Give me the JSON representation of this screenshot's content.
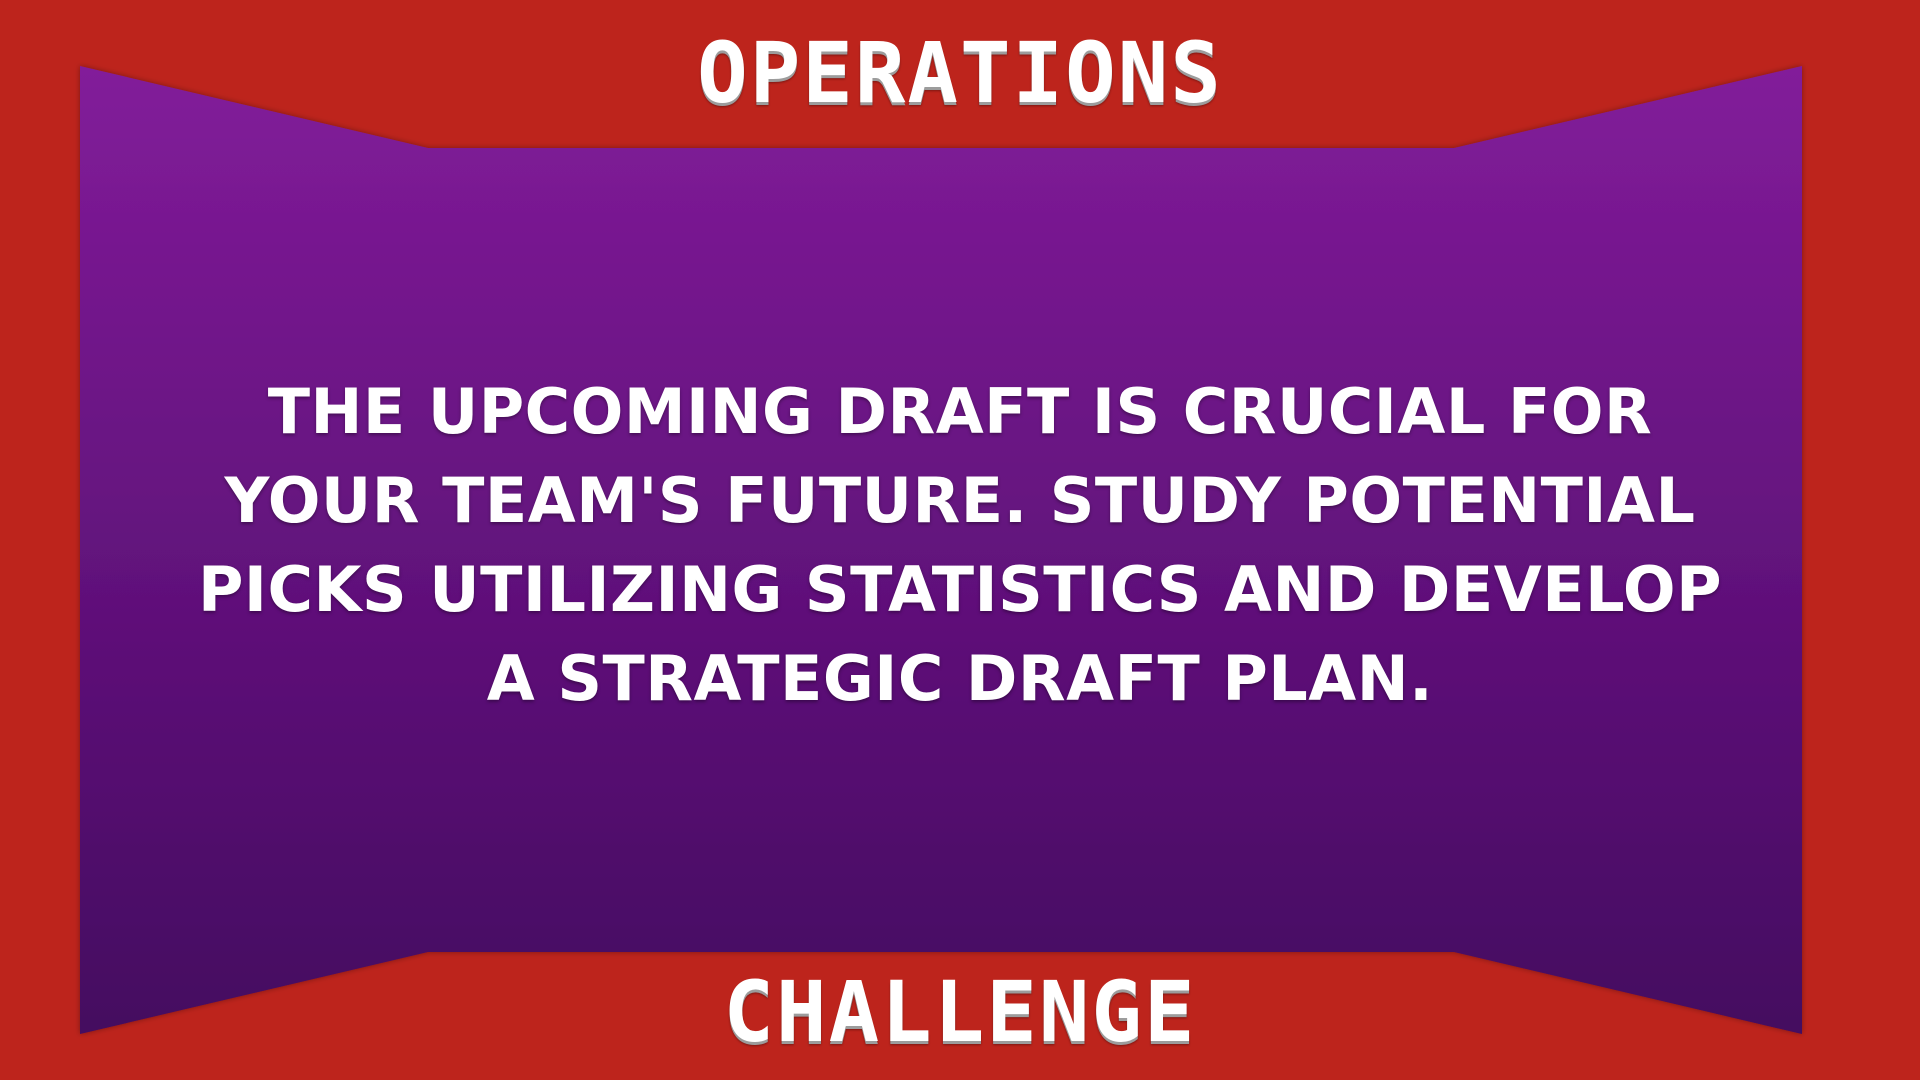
{
  "header": {
    "title": "OPERATIONS"
  },
  "main": {
    "prompt": "THE UPCOMING DRAFT IS CRUCIAL FOR YOUR TEAM'S FUTURE. STUDY POTENTIAL PICKS UTILIZING STATISTICS AND DEVELOP A STRATEGIC DRAFT PLAN."
  },
  "footer": {
    "title": "CHALLENGE"
  },
  "colors": {
    "frame": "#bd241c",
    "panel_top": "#821c9a",
    "panel_bottom": "#440860",
    "text": "#ffffff"
  }
}
